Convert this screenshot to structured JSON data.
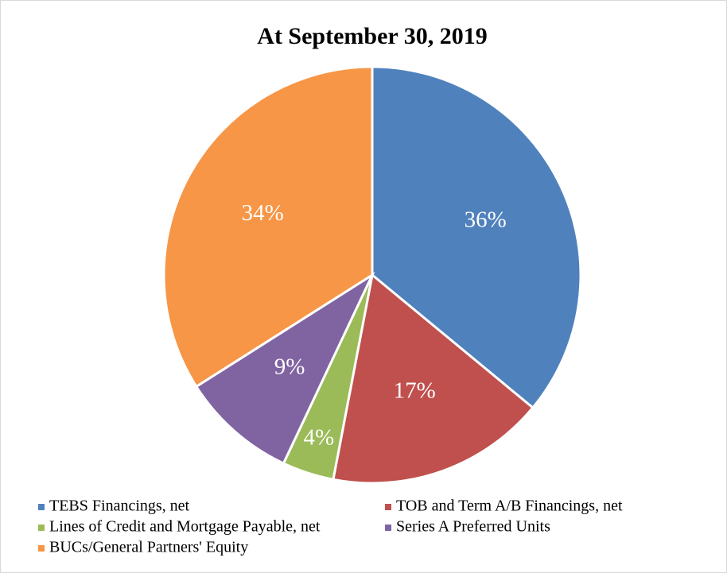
{
  "chart_data": {
    "type": "pie",
    "title": "At September 30, 2019",
    "categories": [
      "TEBS Financings, net",
      "TOB and Term A/B Financings, net",
      "Lines of Credit and Mortgage Payable, net",
      "Series A Preferred Units",
      "BUCs/General Partners' Equity"
    ],
    "values": [
      36,
      17,
      4,
      9,
      34
    ],
    "value_labels": [
      "36%",
      "17%",
      "4%",
      "9%",
      "34%"
    ],
    "colors": [
      "#4f81bd",
      "#c0504d",
      "#9bbb59",
      "#8064a2",
      "#f79646"
    ],
    "legend": "bottom"
  }
}
